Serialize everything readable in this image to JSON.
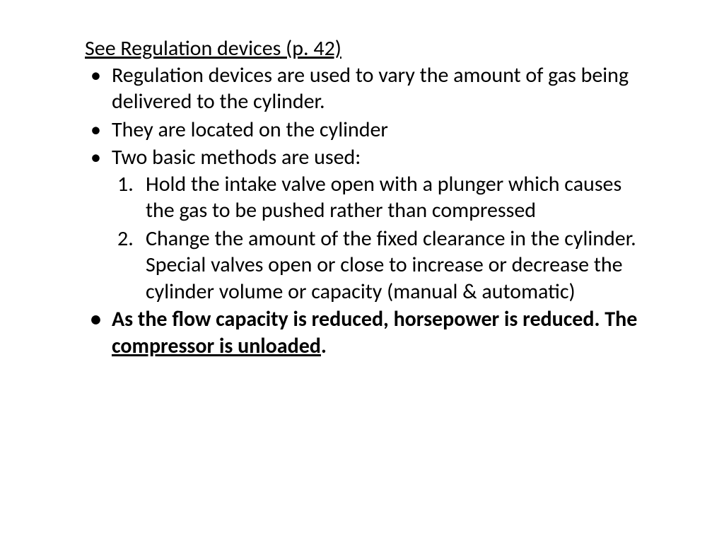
{
  "title": "See Regulation devices (p. 42)",
  "bullets": [
    "Regulation devices are used to vary the amount of gas being delivered to the cylinder.",
    "They are located on the cylinder",
    "Two basic methods are used:"
  ],
  "methods": [
    "Hold the intake valve open with a plunger which causes the gas to be pushed rather than compressed",
    "Change the amount of the fixed clearance in the cylinder. Special valves open or close to increase or decrease the cylinder volume or capacity (manual & automatic)"
  ],
  "bold_bullet": {
    "prefix": "As the flow capacity is reduced, horsepower is reduced.  The ",
    "underlined": "compressor is unloaded",
    "suffix": "."
  },
  "colors": {
    "text": "#000000",
    "background": "#ffffff"
  },
  "font": {
    "family": "Calibri",
    "size_pt": 28,
    "title_underlined": true
  }
}
